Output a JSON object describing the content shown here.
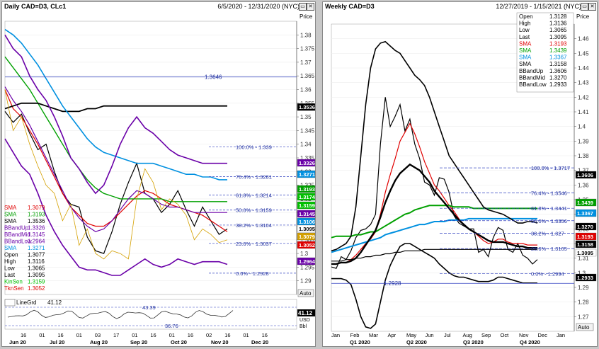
{
  "left": {
    "title": "Daily CAD=D3, CLc1",
    "range": "6/5/2020 - 12/31/2020 (NYC)",
    "price_label": "Price",
    "auto_label": "Auto",
    "ind_label": "LineGrd",
    "ind_value": "41.12",
    "ind_tag": "41.12",
    "ind_levels": [
      "43.39",
      "36.76"
    ],
    "ind_axis_label": "USD",
    "ind_extra_label": "Bbl",
    "legend": [
      {
        "k": "SMA",
        "v": "1.3079",
        "c": "#e00000"
      },
      {
        "k": "SMA",
        "v": "1.3193",
        "c": "#00a000"
      },
      {
        "k": "SMA",
        "v": "1.3536",
        "c": "#000000"
      },
      {
        "k": "BBandUp",
        "v": "1.3326",
        "c": "#6a00a8"
      },
      {
        "k": "BBandMid",
        "v": "1.3145",
        "c": "#6a00a8"
      },
      {
        "k": "BBandLow",
        "v": "1.2964",
        "c": "#6a00a8"
      },
      {
        "k": "SMA",
        "v": "1.3271",
        "c": "#0090e0"
      },
      {
        "k": "Open",
        "v": "1.3077",
        "c": "#000000"
      },
      {
        "k": "High",
        "v": "1.3116",
        "c": "#000000"
      },
      {
        "k": "Low",
        "v": "1.3065",
        "c": "#000000"
      },
      {
        "k": "Last",
        "v": "1.3095",
        "c": "#000000"
      },
      {
        "k": "KinSen",
        "v": "1.3159",
        "c": "#00c000"
      },
      {
        "k": "TknSen",
        "v": "1.3052",
        "c": "#e00000"
      }
    ],
    "fib": [
      {
        "label": "100.0% - 1.339",
        "price": 1.339
      },
      {
        "label": "76.4% - 1.3281",
        "price": 1.3281
      },
      {
        "label": "61.8% - 1.3214",
        "price": 1.3214
      },
      {
        "label": "50.0% - 1.3159",
        "price": 1.3159
      },
      {
        "label": "38.2% - 1.3104",
        "price": 1.3104
      },
      {
        "label": "23.6% - 1.3037",
        "price": 1.3037
      },
      {
        "label": "0.0% - 1.2928",
        "price": 1.2928
      }
    ],
    "hline_label": "1.3646",
    "tags": [
      {
        "v": "1.3536",
        "bg": "#000000",
        "fg": "#ffffff"
      },
      {
        "v": "1.3326",
        "bg": "#6a00a8",
        "fg": "#ffffff"
      },
      {
        "v": "1.3271",
        "bg": "#0090e0",
        "fg": "#ffffff"
      },
      {
        "v": "1.3193",
        "bg": "#00a000",
        "fg": "#ffffff"
      },
      {
        "v": "1.3174",
        "bg": "#00c000",
        "fg": "#ffffff"
      },
      {
        "v": "1.3159",
        "bg": "#00c000",
        "fg": "#ffffff"
      },
      {
        "v": "1.3145",
        "bg": "#6a00a8",
        "fg": "#ffffff"
      },
      {
        "v": "1.3106",
        "bg": "#0090e0",
        "fg": "#ffffff"
      },
      {
        "v": "1.3095",
        "bg": "#ffffff",
        "fg": "#000000"
      },
      {
        "v": "1.3079",
        "bg": "#d4a000",
        "fg": "#ffffff"
      },
      {
        "v": "1.3052",
        "bg": "#e00000",
        "fg": "#ffffff"
      },
      {
        "v": "1.2964",
        "bg": "#6a00a8",
        "fg": "#ffffff"
      }
    ],
    "xticks_day": [
      "16",
      "01",
      "16",
      "01",
      "03",
      "17",
      "01",
      "16",
      "01",
      "16",
      "02",
      "16",
      "01",
      "16"
    ],
    "xticks_month": [
      "Jun 20",
      "Jul 20",
      "Aug 20",
      "Sep 20",
      "Oct 20",
      "Nov 20",
      "Dec 20"
    ]
  },
  "right": {
    "title": "Weekly CAD=D3",
    "range": "12/27/2019 - 1/15/2021 (NYC)",
    "price_label": "Price",
    "auto_label": "Auto",
    "legend": [
      {
        "k": "Open",
        "v": "1.3128",
        "c": "#000000"
      },
      {
        "k": "High",
        "v": "1.3136",
        "c": "#000000"
      },
      {
        "k": "Low",
        "v": "1.3065",
        "c": "#000000"
      },
      {
        "k": "Last",
        "v": "1.3095",
        "c": "#000000"
      },
      {
        "k": "SMA",
        "v": "1.3193",
        "c": "#e00000"
      },
      {
        "k": "SMA",
        "v": "1.3439",
        "c": "#00a000"
      },
      {
        "k": "SMA",
        "v": "1.3367",
        "c": "#0090e0"
      },
      {
        "k": "SMA",
        "v": "1.3158",
        "c": "#000000"
      },
      {
        "k": "BBandUp",
        "v": "1.3606",
        "c": "#000000"
      },
      {
        "k": "BBandMid",
        "v": "1.3270",
        "c": "#000000"
      },
      {
        "k": "BBandLow",
        "v": "1.2933",
        "c": "#000000"
      }
    ],
    "fib": [
      {
        "label": "100.0% - 1.3717",
        "price": 1.3717
      },
      {
        "label": "76.4% - 1.3546",
        "price": 1.3546
      },
      {
        "label": "61.8% - 1.3441",
        "price": 1.3441
      },
      {
        "label": "50.0% - 1.3356",
        "price": 1.3356
      },
      {
        "label": "38.2% - 1.327",
        "price": 1.327
      },
      {
        "label": "23.6% - 1.3165",
        "price": 1.3165
      },
      {
        "label": "0.0% - 1.2994",
        "price": 1.2994
      }
    ],
    "hline_label": "1.2928",
    "tags": [
      {
        "v": "1.3606",
        "bg": "#000000",
        "fg": "#ffffff"
      },
      {
        "v": "1.3439",
        "bg": "#00a000",
        "fg": "#ffffff"
      },
      {
        "v": "1.3367",
        "bg": "#0090e0",
        "fg": "#ffffff"
      },
      {
        "v": "1.3270",
        "bg": "#000000",
        "fg": "#ffffff"
      },
      {
        "v": "1.3193",
        "bg": "#e00000",
        "fg": "#ffffff"
      },
      {
        "v": "1.3158",
        "bg": "#000000",
        "fg": "#ffffff"
      },
      {
        "v": "1.3095",
        "bg": "#ffffff",
        "fg": "#000000"
      },
      {
        "v": "1.2933",
        "bg": "#000000",
        "fg": "#ffffff"
      }
    ],
    "xticks_month": [
      "Jan",
      "Feb",
      "Mar",
      "Apr",
      "May",
      "Jun",
      "Jul",
      "Aug",
      "Sep",
      "Oct",
      "Nov",
      "Dec",
      "Jan"
    ],
    "xticks_quarter": [
      "Q1 2020",
      "Q2 2020",
      "Q3 2020",
      "Q4 2020"
    ]
  },
  "chart_data": [
    {
      "type": "line",
      "title": "Daily CAD=D3, CLc1",
      "ylim": [
        1.285,
        1.385
      ],
      "yticks": [
        1.38,
        1.375,
        1.37,
        1.365,
        1.36,
        1.355,
        1.35,
        1.345,
        1.34,
        1.335,
        1.33,
        1.325,
        1.32,
        1.315,
        1.31,
        1.305,
        1.3,
        1.295,
        1.29
      ],
      "series": [
        {
          "name": "CAD=D3",
          "values": [
            1.352,
            1.348,
            1.351,
            1.344,
            1.338,
            1.34,
            1.33,
            1.322,
            1.318,
            1.317,
            1.306,
            1.301,
            1.3,
            1.308,
            1.318,
            1.326,
            1.333,
            1.322,
            1.32,
            1.315,
            1.318,
            1.323,
            1.316,
            1.31,
            1.317,
            1.312,
            1.307,
            1.309
          ]
        },
        {
          "name": "SMA",
          "values": [
            1.36,
            1.353,
            1.35,
            1.345,
            1.34,
            1.334,
            1.328,
            1.322,
            1.317,
            1.314,
            1.311,
            1.31,
            1.31,
            1.312,
            1.315,
            1.318,
            1.321,
            1.323,
            1.322,
            1.32,
            1.318,
            1.317,
            1.316,
            1.315,
            1.314,
            1.312,
            1.31,
            1.308
          ]
        },
        {
          "name": "SMA",
          "values": [
            1.372,
            1.368,
            1.364,
            1.36,
            1.355,
            1.35,
            1.345,
            1.34,
            1.335,
            1.331,
            1.327,
            1.324,
            1.322,
            1.321,
            1.32,
            1.32,
            1.32,
            1.32,
            1.32,
            1.32,
            1.319,
            1.319,
            1.319,
            1.319,
            1.319,
            1.319,
            1.319,
            1.319
          ]
        },
        {
          "name": "SMA",
          "values": [
            1.353,
            1.354,
            1.355,
            1.355,
            1.355,
            1.354,
            1.353,
            1.352,
            1.352,
            1.352,
            1.353,
            1.353,
            1.354,
            1.354,
            1.354,
            1.354,
            1.354,
            1.354,
            1.354,
            1.354,
            1.354,
            1.354,
            1.354,
            1.354,
            1.354,
            1.354,
            1.354,
            1.354
          ]
        },
        {
          "name": "SMA",
          "values": [
            1.382,
            1.38,
            1.377,
            1.373,
            1.369,
            1.364,
            1.359,
            1.354,
            1.35,
            1.346,
            1.342,
            1.339,
            1.337,
            1.336,
            1.335,
            1.334,
            1.333,
            1.333,
            1.333,
            1.332,
            1.331,
            1.33,
            1.329,
            1.329,
            1.328,
            1.328,
            1.327,
            1.327
          ]
        },
        {
          "name": "BBandUp",
          "values": [
            1.38,
            1.375,
            1.372,
            1.365,
            1.36,
            1.356,
            1.35,
            1.343,
            1.335,
            1.331,
            1.326,
            1.322,
            1.325,
            1.332,
            1.34,
            1.346,
            1.35,
            1.346,
            1.344,
            1.341,
            1.338,
            1.336,
            1.335,
            1.334,
            1.333,
            1.333,
            1.333,
            1.333
          ]
        },
        {
          "name": "BBandMid",
          "values": [
            1.361,
            1.356,
            1.352,
            1.347,
            1.341,
            1.335,
            1.329,
            1.323,
            1.317,
            1.313,
            1.31,
            1.308,
            1.309,
            1.312,
            1.316,
            1.32,
            1.323,
            1.322,
            1.32,
            1.318,
            1.317,
            1.317,
            1.316,
            1.315,
            1.315,
            1.315,
            1.315,
            1.315
          ]
        },
        {
          "name": "BBandLow",
          "values": [
            1.342,
            1.337,
            1.332,
            1.329,
            1.322,
            1.314,
            1.308,
            1.303,
            1.299,
            1.295,
            1.294,
            1.294,
            1.293,
            1.292,
            1.292,
            1.294,
            1.296,
            1.298,
            1.296,
            1.295,
            1.296,
            1.298,
            1.297,
            1.296,
            1.297,
            1.297,
            1.297,
            1.296
          ]
        },
        {
          "name": "CLc1",
          "values": [
            1.36,
            1.345,
            1.35,
            1.34,
            1.332,
            1.325,
            1.322,
            1.312,
            1.318,
            1.303,
            1.309,
            1.3,
            1.298,
            1.301,
            1.3,
            1.298,
            1.32,
            1.331,
            1.326,
            1.316,
            1.32,
            1.318,
            1.314,
            1.305,
            1.309,
            1.307,
            1.304,
            1.305
          ]
        }
      ]
    },
    {
      "type": "line",
      "title": "Weekly CAD=D3",
      "ylim": [
        1.26,
        1.47
      ],
      "yticks": [
        1.46,
        1.45,
        1.44,
        1.43,
        1.42,
        1.41,
        1.4,
        1.39,
        1.38,
        1.37,
        1.36,
        1.35,
        1.34,
        1.33,
        1.32,
        1.31,
        1.3,
        1.29,
        1.28,
        1.27
      ],
      "series": [
        {
          "name": "CAD=D3",
          "values": [
            1.304,
            1.303,
            1.311,
            1.309,
            1.315,
            1.324,
            1.329,
            1.33,
            1.333,
            1.34,
            1.388,
            1.42,
            1.4,
            1.407,
            1.415,
            1.397,
            1.405,
            1.388,
            1.378,
            1.362,
            1.36,
            1.353,
            1.365,
            1.364,
            1.355,
            1.339,
            1.334,
            1.332,
            1.33,
            1.33,
            1.314,
            1.316,
            1.311,
            1.324,
            1.331,
            1.329,
            1.316,
            1.314,
            1.32,
            1.312,
            1.31,
            1.306,
            1.309
          ]
        },
        {
          "name": "SMA",
          "values": [
            1.306,
            1.306,
            1.307,
            1.307,
            1.309,
            1.312,
            1.316,
            1.32,
            1.323,
            1.328,
            1.34,
            1.355,
            1.367,
            1.378,
            1.39,
            1.396,
            1.402,
            1.395,
            1.386,
            1.376,
            1.368,
            1.36,
            1.356,
            1.351,
            1.346,
            1.342,
            1.337,
            1.333,
            1.33,
            1.328,
            1.325,
            1.322,
            1.32,
            1.321,
            1.323,
            1.323,
            1.321,
            1.32,
            1.32,
            1.32,
            1.319,
            1.319,
            1.319
          ]
        },
        {
          "name": "SMA",
          "values": [
            1.324,
            1.325,
            1.325,
            1.325,
            1.325,
            1.326,
            1.326,
            1.327,
            1.328,
            1.328,
            1.33,
            1.332,
            1.334,
            1.336,
            1.338,
            1.34,
            1.341,
            1.343,
            1.344,
            1.345,
            1.346,
            1.346,
            1.346,
            1.346,
            1.346,
            1.345,
            1.345,
            1.345,
            1.345,
            1.344,
            1.344,
            1.344,
            1.344,
            1.344,
            1.344,
            1.344,
            1.344,
            1.344,
            1.344,
            1.344,
            1.344,
            1.344,
            1.344
          ]
        },
        {
          "name": "SMA",
          "values": [
            1.314,
            1.315,
            1.316,
            1.317,
            1.318,
            1.319,
            1.32,
            1.321,
            1.322,
            1.323,
            1.324,
            1.326,
            1.327,
            1.328,
            1.329,
            1.33,
            1.331,
            1.332,
            1.333,
            1.333,
            1.334,
            1.335,
            1.335,
            1.335,
            1.336,
            1.336,
            1.336,
            1.336,
            1.337,
            1.337,
            1.337,
            1.337,
            1.337,
            1.337,
            1.337,
            1.337,
            1.337,
            1.337,
            1.337,
            1.337,
            1.337,
            1.337,
            1.337
          ]
        },
        {
          "name": "SMA",
          "values": [
            1.308,
            1.308,
            1.308,
            1.309,
            1.309,
            1.31,
            1.31,
            1.311,
            1.311,
            1.312,
            1.312,
            1.313,
            1.313,
            1.314,
            1.314,
            1.315,
            1.315,
            1.315,
            1.315,
            1.316,
            1.316,
            1.316,
            1.316,
            1.316,
            1.316,
            1.316,
            1.316,
            1.316,
            1.316,
            1.316,
            1.316,
            1.316,
            1.316,
            1.316,
            1.316,
            1.316,
            1.316,
            1.316,
            1.316,
            1.316,
            1.316,
            1.316,
            1.316
          ]
        },
        {
          "name": "BBandUp",
          "values": [
            1.315,
            1.316,
            1.318,
            1.32,
            1.325,
            1.345,
            1.38,
            1.415,
            1.44,
            1.453,
            1.457,
            1.458,
            1.455,
            1.452,
            1.45,
            1.445,
            1.44,
            1.435,
            1.432,
            1.428,
            1.42,
            1.41,
            1.4,
            1.39,
            1.38,
            1.375,
            1.37,
            1.365,
            1.36,
            1.355,
            1.35,
            1.345,
            1.343,
            1.342,
            1.341,
            1.34,
            1.338,
            1.336,
            1.334,
            1.334,
            1.335,
            1.335,
            1.334
          ]
        },
        {
          "name": "BBandMid",
          "values": [
            1.306,
            1.306,
            1.307,
            1.307,
            1.308,
            1.31,
            1.314,
            1.319,
            1.324,
            1.329,
            1.338,
            1.348,
            1.356,
            1.363,
            1.368,
            1.371,
            1.374,
            1.372,
            1.37,
            1.366,
            1.362,
            1.356,
            1.352,
            1.348,
            1.344,
            1.34,
            1.336,
            1.333,
            1.33,
            1.328,
            1.326,
            1.324,
            1.322,
            1.321,
            1.321,
            1.321,
            1.32,
            1.319,
            1.318,
            1.318,
            1.317,
            1.317,
            1.317
          ]
        },
        {
          "name": "BBandLow",
          "values": [
            1.296,
            1.296,
            1.296,
            1.295,
            1.292,
            1.282,
            1.27,
            1.263,
            1.262,
            1.265,
            1.28,
            1.295,
            1.305,
            1.312,
            1.318,
            1.32,
            1.32,
            1.318,
            1.316,
            1.314,
            1.312,
            1.31,
            1.306,
            1.303,
            1.3,
            1.298,
            1.297,
            1.297,
            1.296,
            1.295,
            1.294,
            1.294,
            1.294,
            1.295,
            1.297,
            1.297,
            1.296,
            1.295,
            1.294,
            1.293,
            1.293,
            1.293,
            1.293
          ]
        }
      ]
    }
  ]
}
